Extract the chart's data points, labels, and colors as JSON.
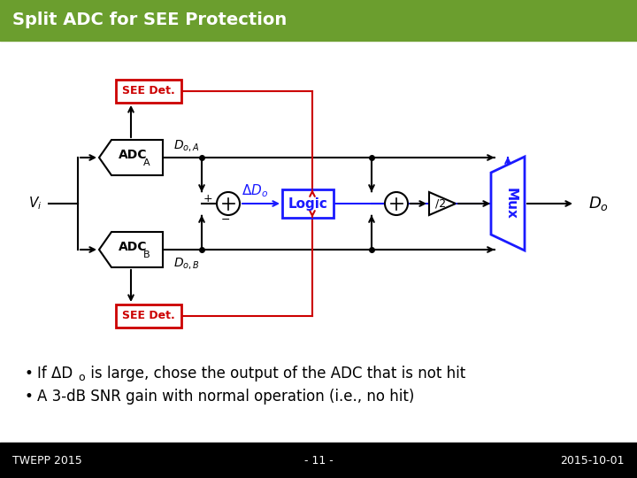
{
  "title": "Split ADC for SEE Protection",
  "title_bg": "#6b9e2e",
  "title_color": "#ffffff",
  "footer_bg": "#000000",
  "footer_color": "#ffffff",
  "footer_left": "TWEPP 2015",
  "footer_center": "- 11 -",
  "footer_right": "2015-10-01",
  "body_bg": "#ffffff",
  "black": "#000000",
  "red": "#cc0000",
  "blue": "#1a1aff",
  "title_fontsize": 14,
  "footer_fontsize": 9,
  "bullet_fontsize": 12
}
